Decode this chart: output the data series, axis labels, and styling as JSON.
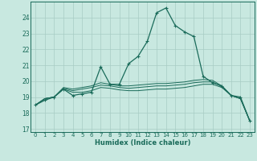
{
  "xlabel": "Humidex (Indice chaleur)",
  "xlim": [
    -0.5,
    23.5
  ],
  "ylim": [
    16.8,
    25.0
  ],
  "yticks": [
    17,
    18,
    19,
    20,
    21,
    22,
    23,
    24
  ],
  "xticks": [
    0,
    1,
    2,
    3,
    4,
    5,
    6,
    7,
    8,
    9,
    10,
    11,
    12,
    13,
    14,
    15,
    16,
    17,
    18,
    19,
    20,
    21,
    22,
    23
  ],
  "bg_color": "#c8e8e0",
  "grid_color": "#a8ccc4",
  "line_color": "#1a6b5a",
  "curve_main_x": [
    0,
    1,
    2,
    3,
    4,
    5,
    6,
    7,
    8,
    9,
    10,
    11,
    12,
    13,
    14,
    15,
    16,
    17,
    18,
    19,
    20,
    21,
    22,
    23
  ],
  "curve_main_y": [
    18.5,
    18.8,
    19.0,
    19.5,
    19.1,
    19.2,
    19.3,
    20.9,
    19.8,
    19.8,
    21.1,
    21.55,
    22.5,
    24.3,
    24.6,
    23.5,
    23.1,
    22.8,
    20.3,
    19.9,
    19.7,
    19.1,
    19.0,
    17.5
  ],
  "curve_a_x": [
    0,
    1,
    2,
    3,
    4,
    5,
    6,
    7,
    8,
    9,
    10,
    11,
    12,
    13,
    14,
    15,
    16,
    17,
    18,
    19,
    20,
    21,
    22,
    23
  ],
  "curve_a_y": [
    18.5,
    18.9,
    19.0,
    19.5,
    19.3,
    19.3,
    19.4,
    19.6,
    19.55,
    19.45,
    19.4,
    19.4,
    19.45,
    19.5,
    19.5,
    19.55,
    19.6,
    19.7,
    19.8,
    19.8,
    19.6,
    19.1,
    18.9,
    17.5
  ],
  "curve_b_x": [
    0,
    1,
    2,
    3,
    4,
    5,
    6,
    7,
    8,
    9,
    10,
    11,
    12,
    13,
    14,
    15,
    16,
    17,
    18,
    19,
    20,
    21,
    22,
    23
  ],
  "curve_b_y": [
    18.5,
    18.9,
    19.0,
    19.55,
    19.4,
    19.5,
    19.6,
    19.75,
    19.7,
    19.6,
    19.55,
    19.6,
    19.65,
    19.7,
    19.7,
    19.75,
    19.8,
    19.9,
    19.95,
    19.95,
    19.65,
    19.1,
    18.9,
    17.5
  ],
  "curve_c_x": [
    0,
    1,
    2,
    3,
    4,
    5,
    6,
    7,
    8,
    9,
    10,
    11,
    12,
    13,
    14,
    15,
    16,
    17,
    18,
    19,
    20,
    21,
    22,
    23
  ],
  "curve_c_y": [
    18.5,
    18.9,
    19.0,
    19.6,
    19.5,
    19.6,
    19.7,
    19.9,
    19.8,
    19.7,
    19.7,
    19.75,
    19.8,
    19.85,
    19.85,
    19.9,
    19.95,
    20.05,
    20.1,
    20.05,
    19.7,
    19.1,
    18.9,
    17.5
  ]
}
